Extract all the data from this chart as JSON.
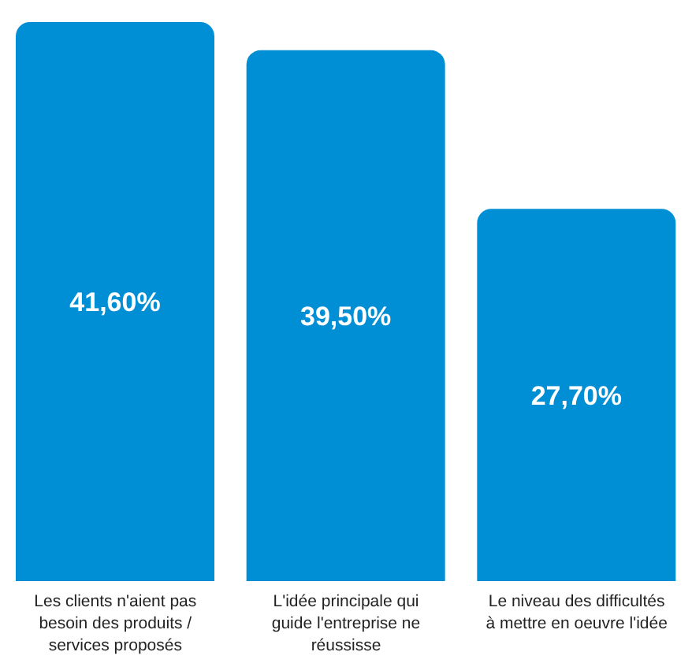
{
  "chart_data": {
    "type": "bar",
    "categories": [
      "Les clients n'aient pas besoin des produits / services proposés",
      "L'idée principale qui guide l'entreprise ne réussisse",
      "Le niveau des difficultés à mettre en oeuvre l'idée"
    ],
    "values": [
      41.6,
      39.5,
      27.7
    ],
    "color": "#008fd5",
    "ylim": [
      0,
      41.6
    ],
    "value_labels": [
      "41,60%",
      "39,50%",
      "27,70%"
    ],
    "grid": false,
    "legend": false,
    "tick_labels": "x"
  }
}
